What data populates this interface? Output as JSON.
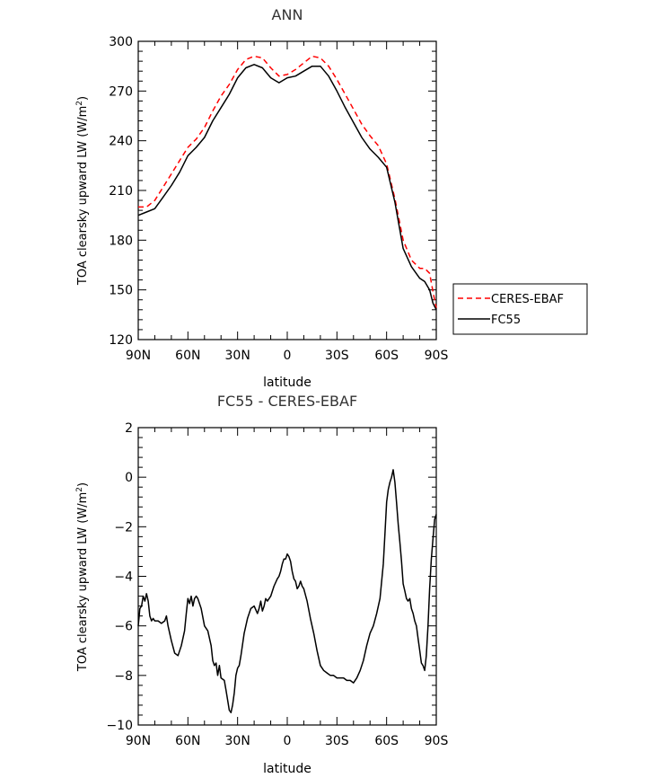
{
  "chart_data": [
    {
      "type": "line",
      "title": "ANN",
      "xlabel": "latitude",
      "ylabel_main": "TOA clearsky upward LW (W/m",
      "ylabel_sup": "2",
      "ylabel_close": ")",
      "xlim": [
        90,
        -90
      ],
      "ylim": [
        120,
        300
      ],
      "x_ticks": [
        90,
        60,
        30,
        0,
        -30,
        -60,
        -90
      ],
      "x_tick_labels": [
        "90N",
        "60N",
        "30N",
        "0",
        "30S",
        "60S",
        "90S"
      ],
      "y_ticks": [
        120,
        150,
        180,
        210,
        240,
        270,
        300
      ],
      "y_tick_labels": [
        "120",
        "150",
        "180",
        "210",
        "240",
        "270",
        "300"
      ],
      "legend_position": "right",
      "series": [
        {
          "name": "CERES-EBAF",
          "color": "#ff0000",
          "dash": "dashed",
          "x": [
            90,
            85,
            80,
            75,
            70,
            65,
            60,
            55,
            50,
            45,
            40,
            35,
            30,
            25,
            20,
            15,
            10,
            5,
            0,
            -5,
            -10,
            -15,
            -20,
            -25,
            -30,
            -35,
            -40,
            -45,
            -50,
            -55,
            -60,
            -65,
            -70,
            -75,
            -80,
            -83,
            -86,
            -88,
            -90
          ],
          "values": [
            200,
            200,
            204,
            212,
            220,
            228,
            236,
            241,
            248,
            258,
            267,
            274,
            283,
            289,
            291,
            290,
            284,
            279,
            280,
            283,
            287,
            291,
            290,
            285,
            277,
            268,
            259,
            250,
            243,
            237,
            226,
            205,
            180,
            168,
            163,
            163,
            160,
            149,
            139
          ]
        },
        {
          "name": "FC55",
          "color": "#000000",
          "dash": "solid",
          "x": [
            90,
            85,
            80,
            75,
            70,
            65,
            60,
            55,
            50,
            45,
            40,
            35,
            30,
            25,
            20,
            15,
            10,
            5,
            0,
            -5,
            -10,
            -15,
            -20,
            -25,
            -30,
            -35,
            -40,
            -45,
            -50,
            -55,
            -60,
            -65,
            -70,
            -75,
            -80,
            -83,
            -86,
            -88,
            -90
          ],
          "values": [
            195,
            197,
            199,
            206,
            213,
            221,
            231,
            236,
            242,
            252,
            260,
            268,
            278,
            284,
            286,
            284,
            278,
            275,
            278,
            279,
            282,
            285,
            285,
            279,
            270,
            260,
            251,
            242,
            235,
            230,
            224,
            203,
            175,
            164,
            157,
            155,
            150,
            142,
            138
          ]
        }
      ]
    },
    {
      "type": "line",
      "title": "FC55  -  CERES-EBAF",
      "xlabel": "latitude",
      "ylabel_main": "TOA clearsky upward LW (W/m",
      "ylabel_sup": "2",
      "ylabel_close": ")",
      "xlim": [
        90,
        -90
      ],
      "ylim": [
        -10,
        2
      ],
      "x_ticks": [
        90,
        60,
        30,
        0,
        -30,
        -60,
        -90
      ],
      "x_tick_labels": [
        "90N",
        "60N",
        "30N",
        "0",
        "30S",
        "60S",
        "90S"
      ],
      "y_ticks": [
        -10,
        -8,
        -6,
        -4,
        -2,
        0,
        2
      ],
      "y_tick_labels": [
        "−10",
        "−8",
        "−6",
        "−4",
        "−2",
        "0",
        "2"
      ],
      "series": [
        {
          "color": "#000000",
          "x": [
            90,
            89,
            88,
            87,
            86,
            85,
            84,
            83,
            82,
            81,
            80,
            78,
            76,
            74,
            73,
            72,
            70,
            68,
            66,
            64,
            62,
            61,
            60,
            59,
            58,
            57,
            56,
            55,
            54,
            52,
            50,
            48,
            46,
            45,
            44,
            43,
            42,
            41,
            40,
            38,
            37,
            36,
            35,
            34,
            33,
            32,
            31,
            30,
            29,
            28,
            26,
            24,
            22,
            20,
            18,
            17,
            16,
            15,
            14,
            13,
            12,
            10,
            8,
            6,
            5,
            4,
            3,
            2,
            1,
            0,
            -1,
            -2,
            -3,
            -4,
            -5,
            -6,
            -7,
            -8,
            -9,
            -10,
            -12,
            -14,
            -16,
            -18,
            -20,
            -22,
            -24,
            -26,
            -28,
            -30,
            -32,
            -34,
            -36,
            -38,
            -40,
            -42,
            -44,
            -46,
            -48,
            -50,
            -52,
            -54,
            -56,
            -58,
            -59,
            -60,
            -61,
            -62,
            -63,
            -64,
            -65,
            -66,
            -67,
            -68,
            -69,
            -70,
            -71,
            -72,
            -73,
            -74,
            -75,
            -76,
            -77,
            -78,
            -79,
            -80,
            -81,
            -82,
            -83,
            -84,
            -85,
            -86,
            -87,
            -88,
            -89,
            -90
          ],
          "values": [
            -6.0,
            -5.3,
            -5.2,
            -4.8,
            -5.0,
            -4.7,
            -5.0,
            -5.6,
            -5.8,
            -5.7,
            -5.8,
            -5.8,
            -5.9,
            -5.8,
            -5.6,
            -6.0,
            -6.6,
            -7.1,
            -7.2,
            -6.8,
            -6.2,
            -5.5,
            -4.9,
            -5.1,
            -4.8,
            -5.2,
            -4.9,
            -4.8,
            -4.9,
            -5.3,
            -6.0,
            -6.2,
            -6.8,
            -7.4,
            -7.6,
            -7.5,
            -8.0,
            -7.6,
            -8.1,
            -8.2,
            -8.6,
            -9.0,
            -9.4,
            -9.5,
            -9.2,
            -8.7,
            -8.0,
            -7.7,
            -7.6,
            -7.2,
            -6.3,
            -5.7,
            -5.3,
            -5.2,
            -5.5,
            -5.3,
            -5.0,
            -5.4,
            -5.2,
            -4.9,
            -5.0,
            -4.8,
            -4.4,
            -4.1,
            -4.0,
            -3.8,
            -3.5,
            -3.3,
            -3.3,
            -3.1,
            -3.2,
            -3.4,
            -3.8,
            -4.1,
            -4.2,
            -4.5,
            -4.4,
            -4.2,
            -4.4,
            -4.5,
            -5.0,
            -5.7,
            -6.3,
            -7.0,
            -7.6,
            -7.8,
            -7.9,
            -8.0,
            -8.0,
            -8.1,
            -8.1,
            -8.1,
            -8.2,
            -8.2,
            -8.3,
            -8.1,
            -7.8,
            -7.4,
            -6.8,
            -6.3,
            -6.0,
            -5.5,
            -4.9,
            -3.5,
            -2.3,
            -1.0,
            -0.5,
            -0.2,
            0.0,
            0.3,
            -0.2,
            -1.0,
            -1.9,
            -2.6,
            -3.4,
            -4.3,
            -4.6,
            -4.9,
            -5.0,
            -4.9,
            -5.3,
            -5.5,
            -5.8,
            -6.0,
            -6.5,
            -7.0,
            -7.5,
            -7.6,
            -7.8,
            -7.2,
            -6.0,
            -4.5,
            -3.3,
            -2.5,
            -1.7,
            -1.5
          ]
        }
      ]
    }
  ],
  "legend": {
    "items": [
      {
        "label": "CERES-EBAF",
        "color": "#ff0000",
        "dash": "dashed"
      },
      {
        "label": "FC55",
        "color": "#000000",
        "dash": "solid"
      }
    ]
  }
}
